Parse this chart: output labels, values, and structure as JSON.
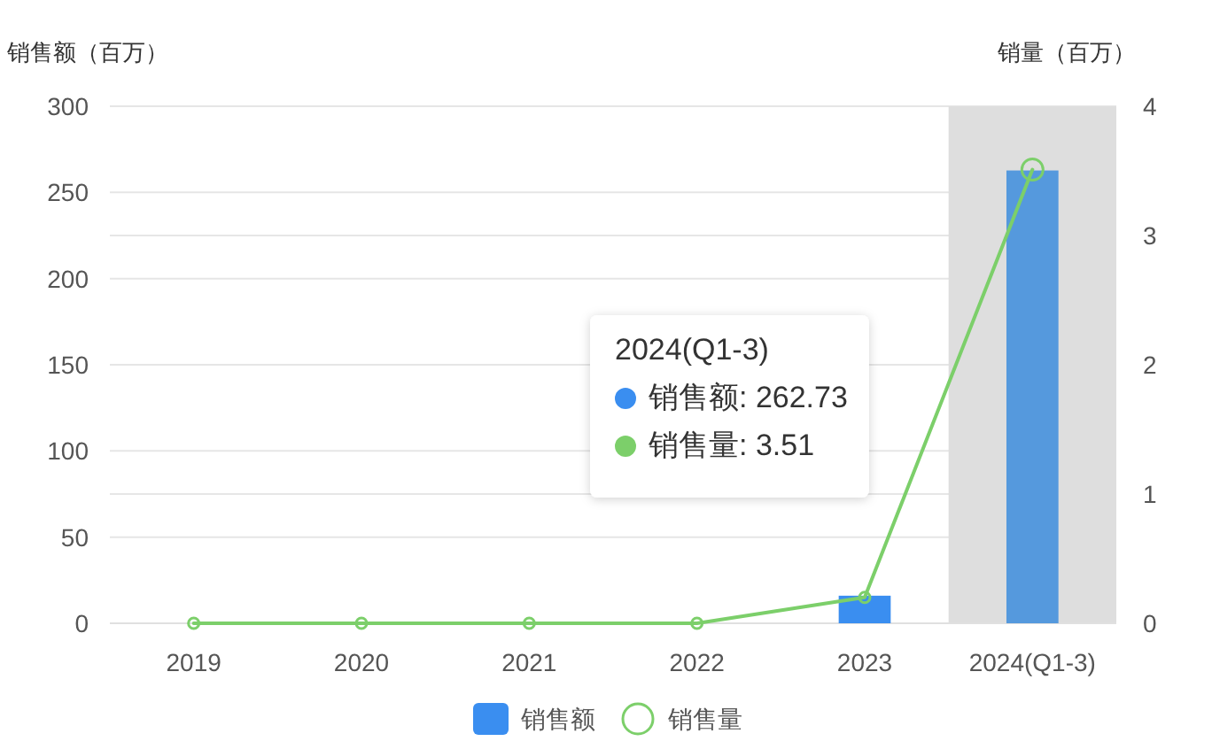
{
  "chart_data": {
    "type": "bar",
    "categories": [
      "2019",
      "2020",
      "2021",
      "2022",
      "2023",
      "2024(Q1-3)"
    ],
    "ylabel": "销售额（百万）",
    "y2label": "销量（百万）",
    "ylim": [
      0,
      300
    ],
    "yticks": [
      0,
      50,
      100,
      150,
      200,
      250,
      300
    ],
    "y2lim": [
      0,
      4
    ],
    "y2ticks": [
      0,
      1,
      2,
      3,
      4
    ],
    "grid": "y",
    "legend": "bottom",
    "series": [
      {
        "name": "销售额",
        "color": "#3a8ef0",
        "colors": [
          "#3a8ef0",
          "#3a8ef0",
          "#3a8ef0",
          "#3a8ef0",
          "#3a8ef0",
          "#5599dd"
        ],
        "values": [
          0,
          0,
          0,
          0,
          16,
          262.73
        ]
      },
      {
        "name": "销售量",
        "type": "line",
        "axis": "y2",
        "color": "#7ccf6a",
        "marker": "circle",
        "values": [
          0,
          0,
          0,
          0,
          0.2,
          3.51
        ]
      }
    ],
    "bands": [
      {
        "axis": "x",
        "from": "2024(Q1-3)",
        "to": "2024(Q1-3)",
        "color": "#dedede"
      }
    ],
    "annotations": [
      "2024(Q1-3)",
      "销售额: 262.73",
      "销售量: 3.51"
    ]
  }
}
